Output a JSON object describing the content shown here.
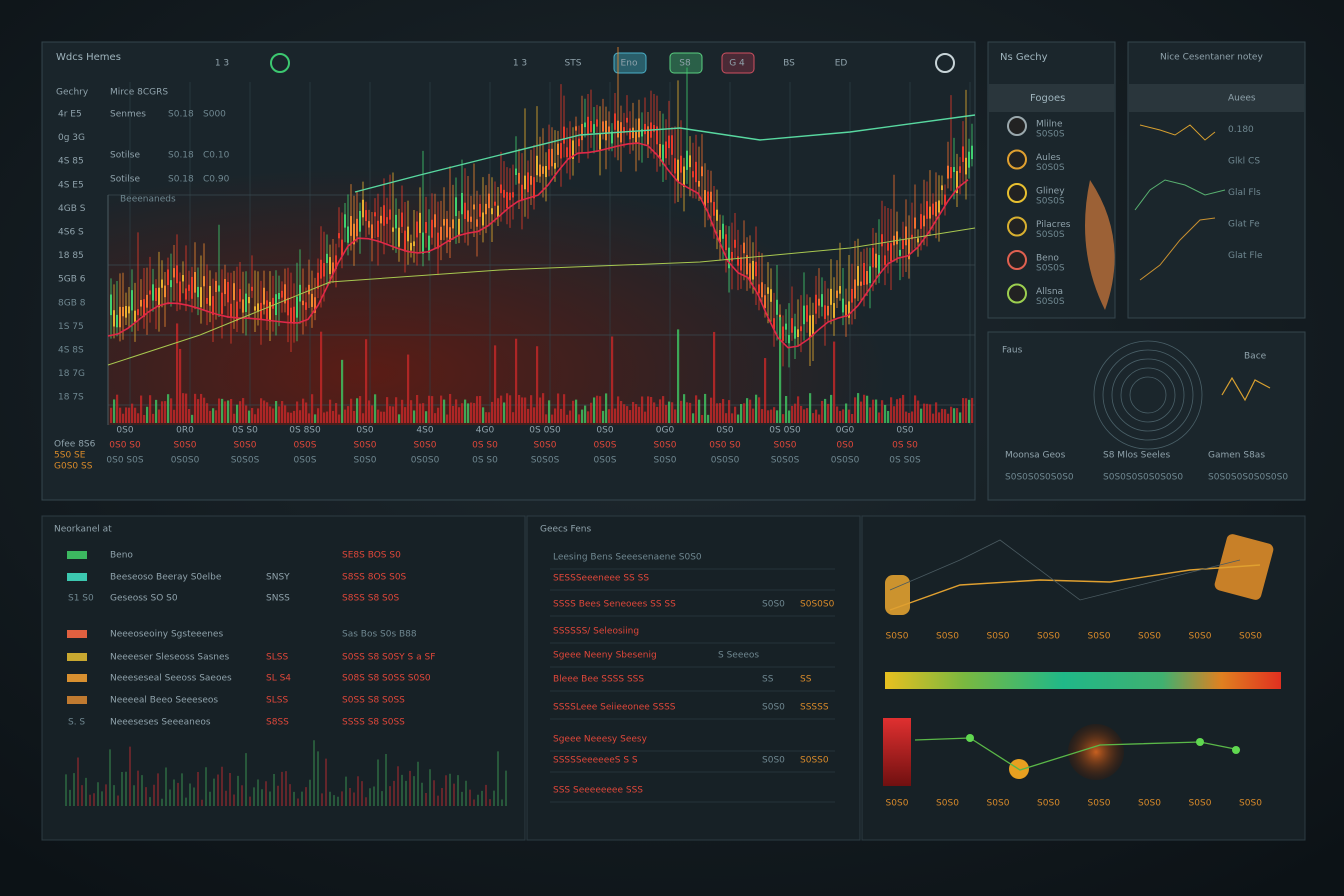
{
  "header": {
    "title": "Wdcs Hemes",
    "controls": [
      "1 3",
      "1 3",
      "STS",
      "Eno",
      "S8",
      "G 4",
      "BS",
      "ED"
    ]
  },
  "main": {
    "side_heading": "Gechry",
    "side_labels": [
      "4r E5",
      "0g 3G",
      "4S 85",
      "4S E5",
      "4GB S",
      "4S6 S",
      "18 85",
      "5GB 6",
      "8GB 8",
      "1S 75",
      "4S 8S",
      "18 7G",
      "18 7S"
    ],
    "info_heading": "Mirce 8CGRS",
    "info_rows": [
      [
        "Senmes",
        "S0.18",
        "S000"
      ],
      [
        "Sotilse",
        "S0.18",
        "C0.10"
      ],
      [
        "Sotilse",
        "S0.18",
        "C0.90"
      ]
    ],
    "chart_label": "Beeenaneds",
    "foot_labels": [
      "Ofee 8S6",
      "5S0 SE",
      "G0S0 SS"
    ],
    "time_labels": [
      "0S0",
      "0R0",
      "0S S0",
      "0S 8S0",
      "0S0",
      "4S0",
      "4G0",
      "0S 0S0",
      "0S0",
      "0G0",
      "0S0",
      "0S 0S0",
      "0G0",
      "0S0"
    ],
    "time_sub": [
      "0S0 S0",
      "S0S0",
      "S0S0",
      "0S0S",
      "S0S0",
      "S0S0",
      "0S S0",
      "S0S0",
      "0S0S",
      "S0S0",
      "0S0 S0",
      "S0S0",
      "0S0",
      "0S S0"
    ],
    "time_sub2": [
      "0S0 S0S",
      "0S0S0",
      "S0S0S",
      "0S0S",
      "S0S0",
      "0S0S0",
      "0S S0",
      "S0S0S",
      "0S0S",
      "S0S0",
      "0S0S0",
      "S0S0S",
      "0S0S0",
      "0S S0S"
    ]
  },
  "watch": {
    "title": "Ns Gechy",
    "heading": "Fogoes",
    "items": [
      "Mlilne",
      "Aules",
      "Gliney",
      "Pilacres",
      "Beno",
      "Allsna"
    ],
    "subs": [
      "S0S0S",
      "S0S0S",
      "S0S0S",
      "S0S0S",
      "S0S0S",
      "S0S0S"
    ],
    "colors": [
      "#9aa8ad",
      "#e0a030",
      "#e8c030",
      "#d8b030",
      "#e06050",
      "#9ccf50"
    ]
  },
  "notes": {
    "title": "Nice Cesentaner notey",
    "labels": [
      "Auees",
      "0.180",
      "Glkl CS",
      "Glal Fls",
      "Glat Fe",
      "Glat Fle"
    ]
  },
  "gauge": {
    "title": "Faus",
    "side": "Bace",
    "footer": [
      "Moonsa Geos",
      "S8 Mlos Seeles",
      "Gamen S8as"
    ],
    "footer_sub": [
      "S0S0S0S0S0S0",
      "S0S0S0S0S0S0S0",
      "S0S0S0S0S0S0S0"
    ]
  },
  "orders": {
    "title": "Neorkanel at",
    "rows": [
      {
        "name": "Beno",
        "quote": "SE8S BOS S0"
      },
      {
        "name": "Beeseoso Beeray S0elbe",
        "code": "SNSY",
        "quote": "S8SS 8OS S0S"
      },
      {
        "name": "Geseoss SO S0",
        "code": "SNSS",
        "quote": "S8SS S8 S0S",
        "tag": "S1 S0"
      },
      {
        "name": "Neeeoseoiny Sgsteeenes",
        "quote": "Sas Bos S0s B88"
      },
      {
        "name": "Neeeeser Sleseoss Sasnes",
        "code": "SLSS",
        "quote": "S0SS S8 S0SY S a SF"
      },
      {
        "name": "Neeeseseal Seeoss Saeoes",
        "code": "SL S4",
        "quote": "S08S S8 S0SS S0S0"
      },
      {
        "name": "Neeeeal Beeo Seeeseos",
        "code": "SLSS",
        "quote": "S0SS S8 S0SS"
      },
      {
        "name": "Neeeseses Seeeaneos",
        "code": "S8SS",
        "quote": "SSSS S8 S0SS",
        "tag": "S. S"
      }
    ],
    "icon_colors": [
      "#3cb860",
      "#3cc8b0",
      "#e06040",
      "#c8a830",
      "#d89030",
      "#c07a30"
    ]
  },
  "feed": {
    "title": "Geecs Fens",
    "rows": [
      {
        "text": "Leesing Bens Seeesenaene S0S0",
        "tone": "g"
      },
      {
        "text": "SESSSeeeneee SS SS",
        "tone": "r"
      },
      {
        "text": "SSSS Bees Seneoees SS SS",
        "tone": "r",
        "mid": "S0S0",
        "end": "S0S0S0"
      },
      {
        "text": "SSSSSS/ Seleosiing",
        "tone": "r"
      },
      {
        "text": "Sgeee Neeny Sbesenig",
        "tone": "r",
        "mid": "S Seeeos"
      },
      {
        "text": "Bleee Bee SSSS SSS",
        "tone": "r",
        "mid": "SS",
        "end": "SS"
      },
      {
        "text": "SSSSLeee Seiieeonee SSSS",
        "tone": "r",
        "mid": "S0S0",
        "end": "SSSSS"
      },
      {
        "text": "Sgeee Neeesy Seesy",
        "tone": "r"
      },
      {
        "text": "SSSSSeeeeeeS S S",
        "tone": "r",
        "mid": "S0S0",
        "end": "S0SS0"
      },
      {
        "text": "SSS Seeeeeeee SSS",
        "tone": "r"
      }
    ]
  },
  "visual": {
    "row1": [
      "S0S0",
      "S0S0",
      "S0S0",
      "S0S0",
      "S0S0",
      "S0S0",
      "S0S0",
      "S0S0"
    ],
    "row2": [
      "S0S0",
      "S0S0",
      "S0S0",
      "S0S0",
      "S0S0",
      "S0S0",
      "S0S0",
      "S0S0"
    ]
  }
}
